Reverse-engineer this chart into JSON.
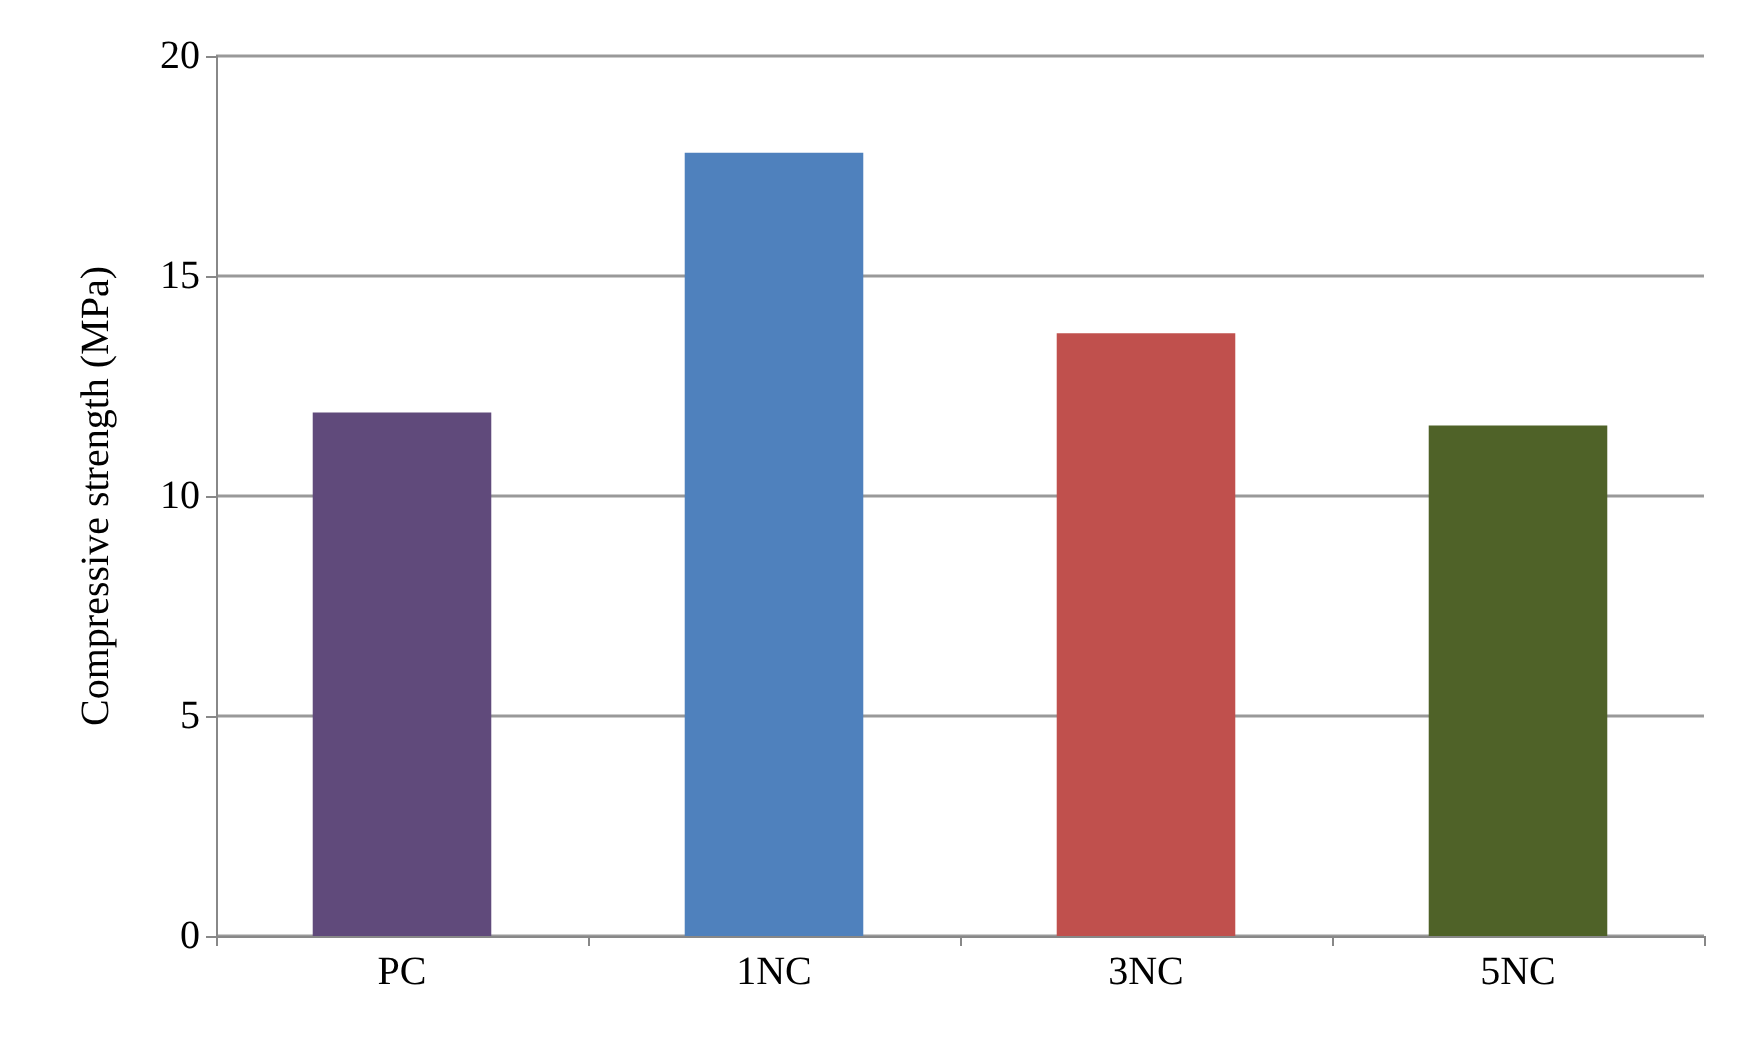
{
  "chart_data": {
    "type": "bar",
    "ylabel": "Compressive strength (MPa)",
    "categories": [
      "PC",
      "1NC",
      "3NC",
      "5NC"
    ],
    "values": [
      11.9,
      17.8,
      13.7,
      11.6
    ],
    "colors": [
      "#604a7b",
      "#4f81bd",
      "#c0504d",
      "#4f6228"
    ],
    "ylim": [
      0,
      20
    ],
    "yticks": [
      0,
      5,
      10,
      15,
      20
    ],
    "grid": "y"
  }
}
